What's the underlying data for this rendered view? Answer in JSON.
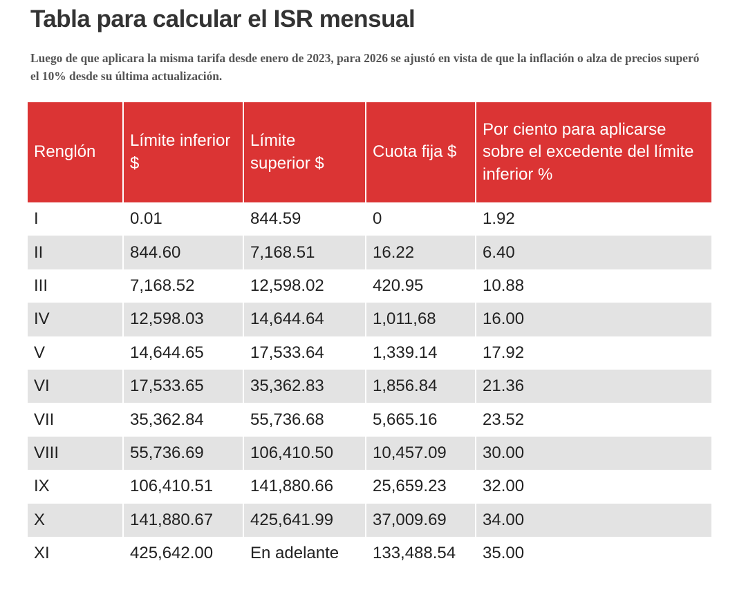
{
  "title": "Tabla para calcular el ISR mensual",
  "subtitle": "Luego de que aplicara la misma tarifa desde enero de 2023, para 2026 se ajustó en vista de que la inflación o alza de precios superó el 10% desde su última actualización.",
  "colors": {
    "header_bg": "#db3434",
    "stripe": "#e3e3e3",
    "title": "#333333"
  },
  "chart_data": {
    "type": "table",
    "columns": [
      "Renglón",
      "Límite inferior $",
      "Límite superior $",
      "Cuota fija $",
      "Por ciento para aplicarse sobre el excedente del límite inferior %"
    ],
    "rows": [
      [
        "I",
        "0.01",
        "844.59",
        "0",
        "1.92"
      ],
      [
        "II",
        "844.60",
        "7,168.51",
        "16.22",
        "6.40"
      ],
      [
        "III",
        "7,168.52",
        "12,598.02",
        "420.95",
        "10.88"
      ],
      [
        "IV",
        "12,598.03",
        "14,644.64",
        "1,011,68",
        "16.00"
      ],
      [
        "V",
        "14,644.65",
        "17,533.64",
        "1,339.14",
        "17.92"
      ],
      [
        "VI",
        "17,533.65",
        "35,362.83",
        "1,856.84",
        "21.36"
      ],
      [
        "VII",
        "35,362.84",
        "55,736.68",
        "5,665.16",
        "23.52"
      ],
      [
        "VIII",
        "55,736.69",
        "106,410.50",
        "10,457.09",
        "30.00"
      ],
      [
        "IX",
        "106,410.51",
        "141,880.66",
        "25,659.23",
        "32.00"
      ],
      [
        "X",
        "141,880.67",
        "425,641.99",
        "37,009.69",
        "34.00"
      ],
      [
        "XI",
        "425,642.00",
        "En adelante",
        "133,488.54",
        "35.00"
      ]
    ]
  }
}
